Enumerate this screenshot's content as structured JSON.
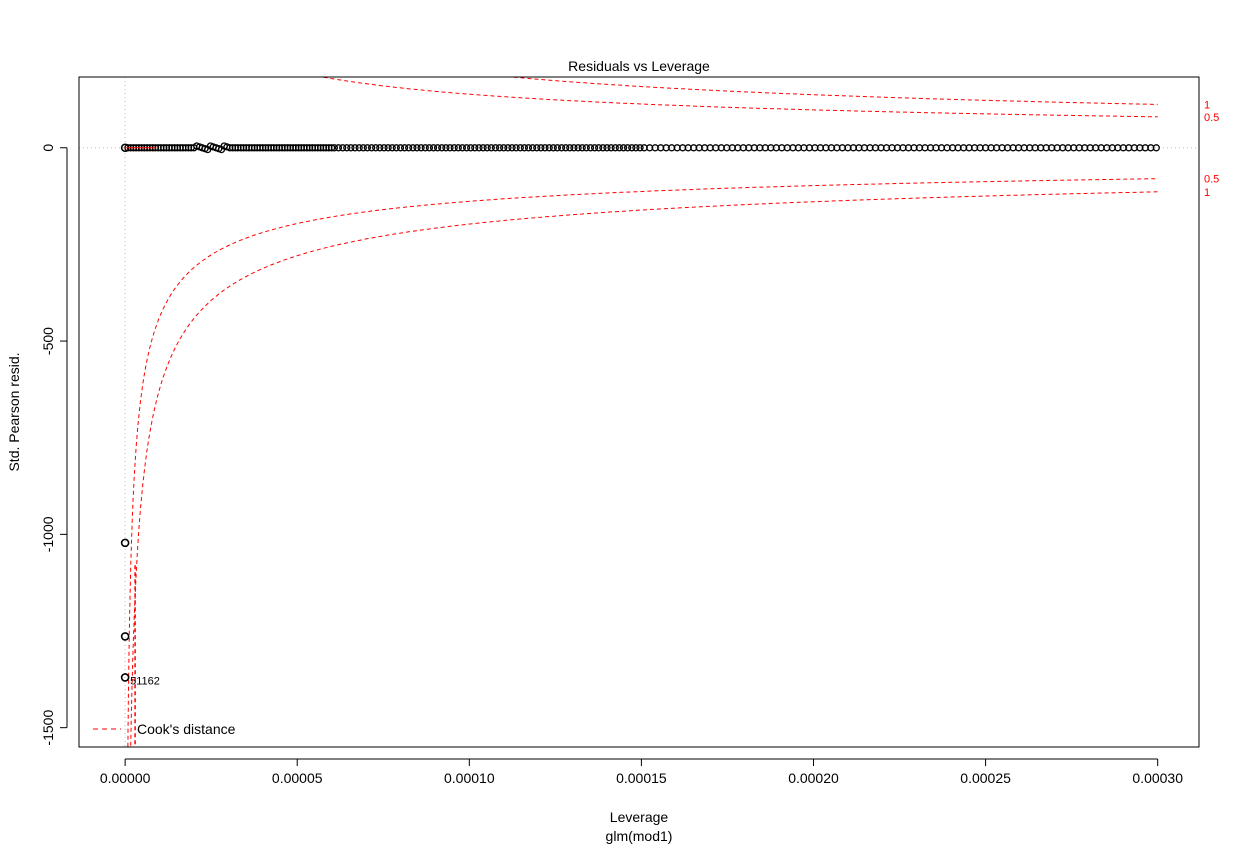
{
  "chart_data": {
    "type": "scatter",
    "title": "Residuals vs Leverage",
    "xlabel": "Leverage",
    "sublabel": "glm(mod1)",
    "ylabel": "Std. Pearson resid.",
    "xlim": [
      -1.34e-05,
      0.000312
    ],
    "ylim": [
      -1550,
      183
    ],
    "xticks": [
      0.0,
      5e-05,
      0.0001,
      0.00015,
      0.0002,
      0.00025,
      0.0003
    ],
    "xtick_labels": [
      "0.00000",
      "0.00005",
      "0.00010",
      "0.00015",
      "0.00020",
      "0.00025",
      "0.00030"
    ],
    "yticks": [
      -1500,
      -1000,
      -500,
      0
    ],
    "ytick_labels": [
      "-1500",
      "-1000",
      "-500",
      "0"
    ],
    "legend": {
      "label": "Cook's distance",
      "position": "bottom-left"
    },
    "outliers": [
      {
        "x": 0.0,
        "y": -1022
      },
      {
        "x": 0.0,
        "y": -1264
      },
      {
        "x": 0.0,
        "y": -1370
      }
    ],
    "outlier_label": "51162",
    "main_series": {
      "x_min": 8e-07,
      "x_max": 0.0003,
      "y_approx": 0,
      "description_points_along_zero": true
    },
    "cook_levels": [
      {
        "label": "1",
        "upper_y_at_xmax": 112,
        "lower_y_at_xmax": -114
      },
      {
        "label": "0.5",
        "upper_y_at_xmax": 80,
        "lower_y_at_xmax": -80
      }
    ],
    "colors": {
      "points": "#000000",
      "cook_lines": "#ff0000",
      "reference": "#bbbbbb"
    }
  }
}
